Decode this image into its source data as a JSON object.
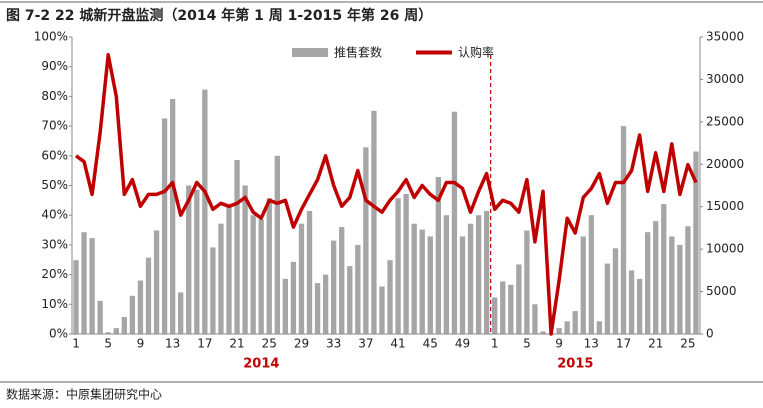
{
  "chart_data": {
    "type": "combo",
    "title": "图 7-2 22 城新开盘监测（2014 年第 1 周 1-2015 年第 26 周）",
    "source": "数据来源：中原集团研究中心",
    "categories": [
      "1",
      null,
      null,
      null,
      "5",
      null,
      null,
      null,
      "9",
      null,
      null,
      null,
      "13",
      null,
      null,
      null,
      "17",
      null,
      null,
      null,
      "21",
      null,
      null,
      null,
      "25",
      null,
      null,
      null,
      "29",
      null,
      null,
      null,
      "33",
      null,
      null,
      null,
      "37",
      null,
      null,
      null,
      "41",
      null,
      null,
      null,
      "45",
      null,
      null,
      null,
      "49",
      null,
      null,
      null,
      "1",
      null,
      null,
      null,
      "5",
      null,
      null,
      null,
      "9",
      null,
      null,
      null,
      "13",
      null,
      null,
      null,
      "17",
      null,
      null,
      null,
      "21",
      null,
      null,
      null,
      "25",
      null
    ],
    "year_labels": [
      "2014",
      "2015"
    ],
    "series": [
      {
        "name": "推售套数",
        "color": "#a6a6a6",
        "axis": "y2",
        "kind": "bar",
        "values": [
          8700,
          12000,
          11300,
          3900,
          200,
          700,
          2000,
          4500,
          6300,
          9000,
          12200,
          25400,
          27700,
          4900,
          17500,
          17000,
          28800,
          10200,
          13000,
          15000,
          20500,
          17500,
          14000,
          13500,
          16000,
          21000,
          6500,
          8500,
          13000,
          14500,
          6000,
          7000,
          11000,
          12600,
          8000,
          10500,
          22000,
          26300,
          5600,
          8700,
          16000,
          16500,
          13000,
          12300,
          11500,
          18500,
          14000,
          26200,
          11500,
          13000,
          14000,
          14500,
          4300,
          6200,
          5800,
          8200,
          12200,
          3500,
          300,
          0,
          700,
          1500,
          2700,
          11500,
          14000,
          1500,
          8300,
          10100,
          24500,
          7500,
          6500,
          12000,
          13300,
          15300,
          11500,
          10500,
          12700,
          21500
        ]
      },
      {
        "name": "认购率",
        "color": "#c00000",
        "axis": "y",
        "kind": "line",
        "values": [
          60,
          58,
          47,
          68,
          94,
          80,
          47,
          52,
          43,
          47,
          47,
          48,
          51,
          40,
          45,
          51,
          48,
          42,
          44,
          43,
          44,
          46,
          41,
          39,
          45,
          44,
          45,
          36,
          42,
          47,
          52,
          60,
          50,
          43,
          46,
          55,
          45,
          43,
          41,
          45,
          48,
          52,
          46,
          50,
          47,
          45,
          51,
          51,
          49,
          41,
          48,
          54,
          42,
          45,
          44,
          41,
          52,
          31,
          48,
          0,
          18,
          39,
          34,
          46,
          49,
          54,
          44,
          51,
          51,
          55,
          67,
          48,
          61,
          48,
          64,
          47,
          57,
          51
        ]
      }
    ],
    "ylim": [
      0,
      100
    ],
    "yticks": [
      {
        "value": 0,
        "label": "0%"
      },
      {
        "value": 10,
        "label": "10%"
      },
      {
        "value": 20,
        "label": "20%"
      },
      {
        "value": 30,
        "label": "30%"
      },
      {
        "value": 40,
        "label": "40%"
      },
      {
        "value": 50,
        "label": "50%"
      },
      {
        "value": 60,
        "label": "60%"
      },
      {
        "value": 70,
        "label": "70%"
      },
      {
        "value": 80,
        "label": "80%"
      },
      {
        "value": 90,
        "label": "90%"
      },
      {
        "value": 100,
        "label": "100%"
      }
    ],
    "y2lim": [
      0,
      35000
    ],
    "y2ticks": [
      0,
      5000,
      10000,
      15000,
      20000,
      25000,
      30000,
      35000
    ],
    "grid": false
  }
}
